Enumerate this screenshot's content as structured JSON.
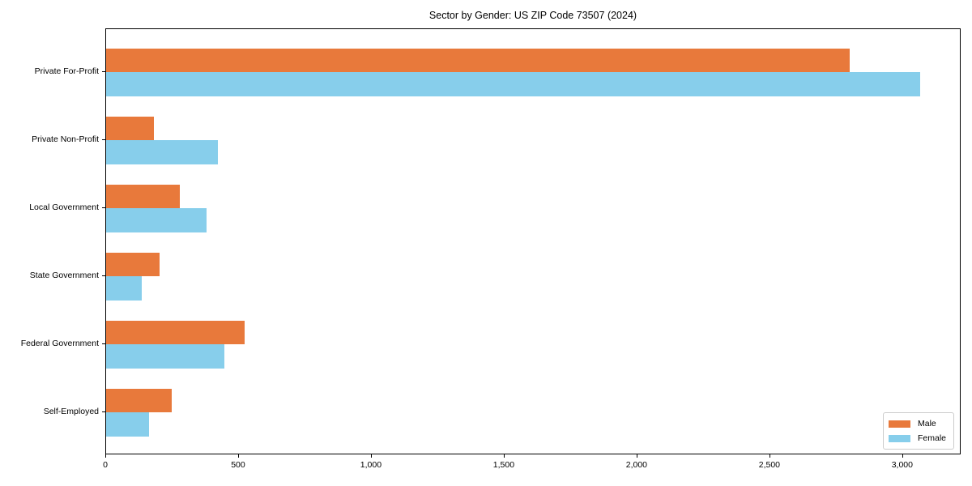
{
  "chart_data": {
    "type": "bar",
    "orientation": "horizontal",
    "title": "Sector by Gender: US ZIP Code 73507 (2024)",
    "categories": [
      "Private For-Profit",
      "Private Non-Profit",
      "Local Government",
      "State Government",
      "Federal Government",
      "Self-Employed"
    ],
    "series": [
      {
        "name": "Male",
        "color": "#E8793B",
        "values": [
          2800,
          180,
          277,
          200,
          520,
          247
        ]
      },
      {
        "name": "Female",
        "color": "#87CEEB",
        "values": [
          3065,
          420,
          378,
          135,
          445,
          163
        ]
      }
    ],
    "xlabel": "",
    "ylabel": "",
    "xlim": [
      0,
      3220
    ],
    "x_ticks": [
      0,
      500,
      1000,
      1500,
      2000,
      2500,
      3000
    ],
    "x_tick_labels": [
      "0",
      "500",
      "1,000",
      "1,500",
      "2,000",
      "2,500",
      "3,000"
    ],
    "grid": false,
    "legend_position": "lower right"
  }
}
